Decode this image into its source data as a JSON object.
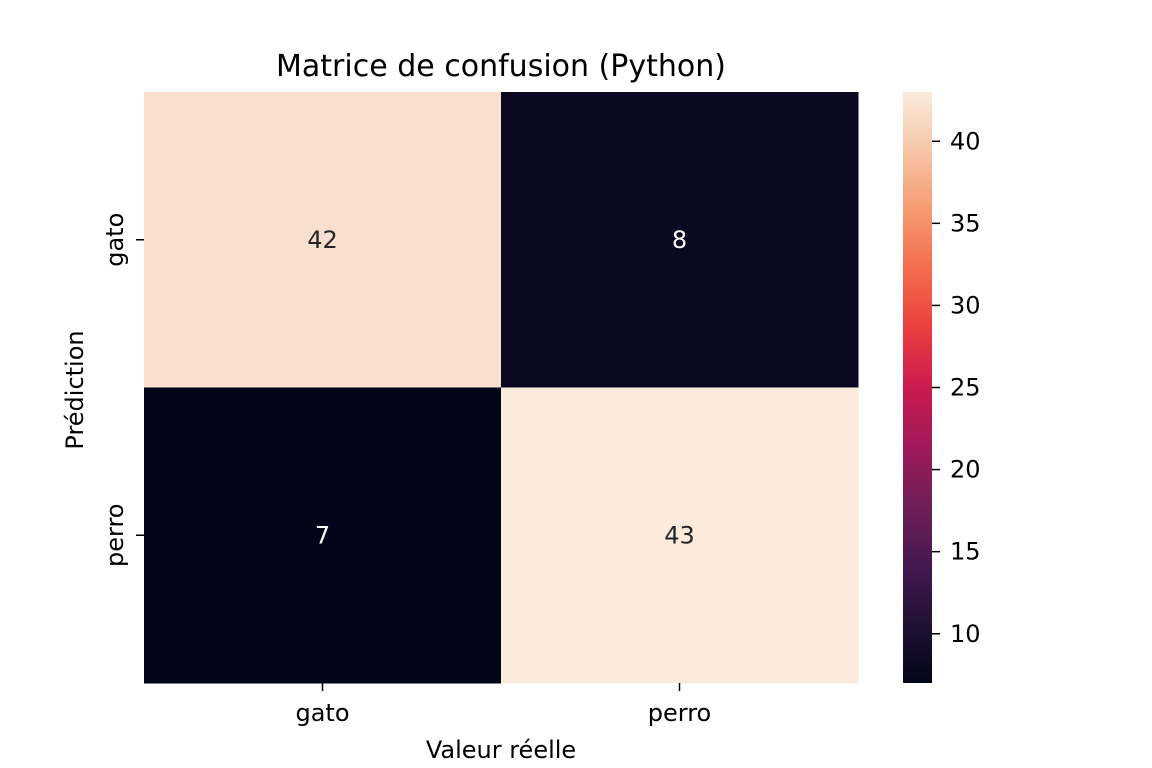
{
  "chart_data": {
    "type": "heatmap",
    "title": "Matrice de confusion (Python)",
    "xlabel": "Valeur réelle",
    "ylabel": "Prédiction",
    "x_categories": [
      "gato",
      "perro"
    ],
    "y_categories": [
      "gato",
      "perro"
    ],
    "values": [
      [
        42,
        8
      ],
      [
        7,
        43
      ]
    ],
    "colorbar": {
      "min": 7,
      "max": 43,
      "ticks": [
        10,
        15,
        20,
        25,
        30,
        35,
        40
      ],
      "colormap": "rocket"
    },
    "annotations": true,
    "grid": false
  }
}
